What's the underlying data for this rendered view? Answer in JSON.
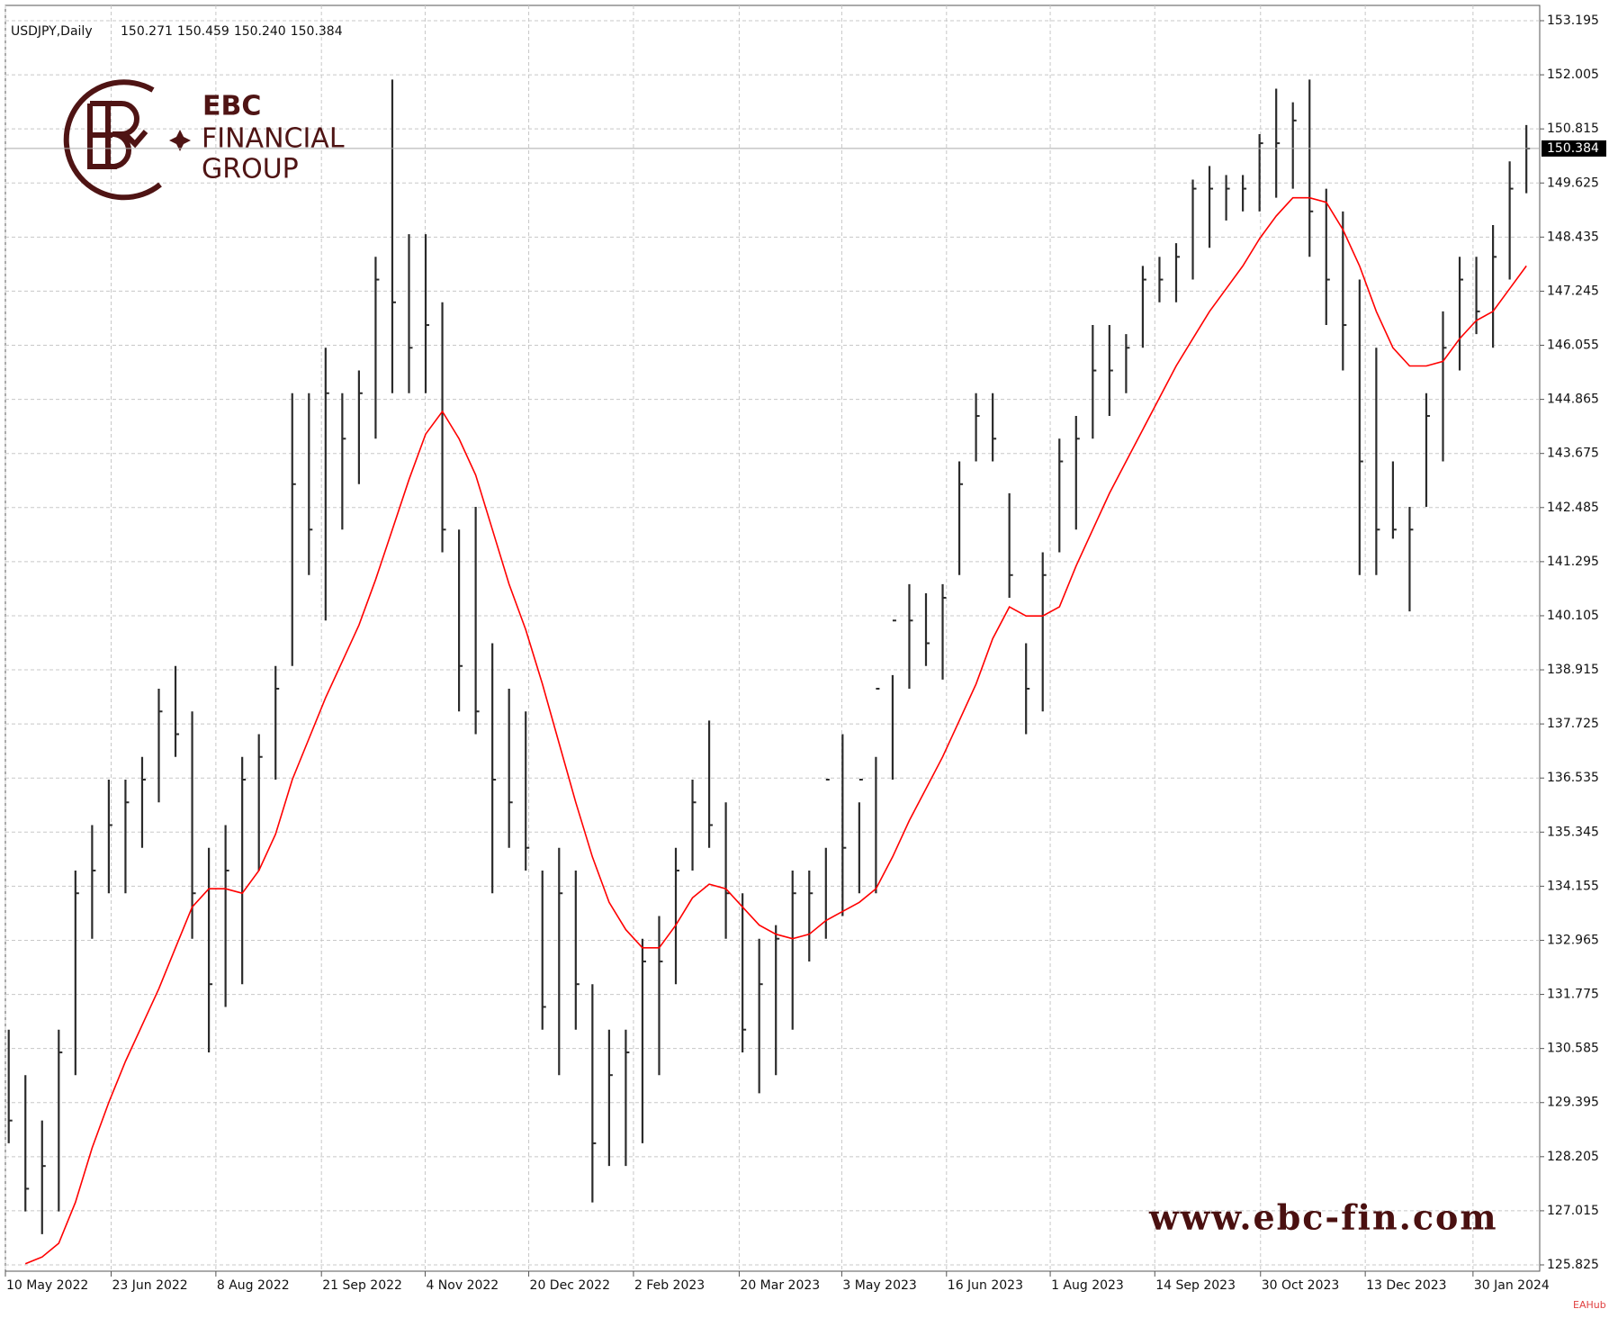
{
  "chart_data": {
    "type": "ohlc",
    "symbol": "USDJPY,Daily",
    "last_ohlc": {
      "values": [
        150.271,
        150.459,
        150.24,
        150.384
      ],
      "value_labels": [
        "150.271",
        "150.459",
        "150.240",
        "150.384"
      ]
    },
    "current_price": 150.384,
    "bar_color": "#2b2b2b",
    "high": [
      131,
      130,
      129,
      131,
      134.5,
      135.5,
      136.5,
      136.5,
      137,
      138.5,
      139,
      138,
      135,
      135.5,
      137,
      137.5,
      139,
      145,
      145,
      146,
      145,
      145.5,
      148,
      151.9,
      148.5,
      148.5,
      147,
      142,
      142.5,
      139.5,
      138.5,
      138,
      134.5,
      135,
      134.5,
      132,
      131,
      131,
      133,
      133.5,
      135,
      136.5,
      137.8,
      136,
      134,
      133,
      133.3,
      134.5,
      134.5,
      135,
      137.5,
      136,
      137,
      138.8,
      140.8,
      140.6,
      140.8,
      143.5,
      145,
      145,
      142.8,
      139.5,
      141.5,
      144,
      144.5,
      146.5,
      146.5,
      146.3,
      147.8,
      148,
      148.3,
      149.7,
      150,
      149.8,
      149.8,
      150.7,
      151.7,
      151.4,
      151.9,
      149.5,
      149,
      147.5,
      146,
      143.5,
      142.5,
      145,
      146.8,
      148,
      148,
      148.7,
      150.1,
      150.9
    ],
    "low": [
      128.5,
      127,
      126.5,
      127,
      130,
      133,
      134,
      134,
      135,
      136,
      137,
      133,
      130.5,
      131.5,
      132,
      134.5,
      136.5,
      139,
      141,
      140,
      142,
      143,
      144,
      145,
      145,
      145,
      141.5,
      138,
      137.5,
      134,
      135,
      134.5,
      131,
      130,
      131,
      127.2,
      128,
      128,
      128.5,
      130,
      132,
      134.5,
      135,
      133,
      130.5,
      129.6,
      130,
      131,
      132.5,
      133,
      133.5,
      134,
      134,
      136.5,
      138.5,
      139,
      138.7,
      141,
      143.5,
      143.5,
      140.5,
      137.5,
      138,
      141.5,
      142,
      144,
      144.5,
      145,
      146,
      147,
      147,
      147.5,
      148.2,
      148.8,
      149,
      149,
      149.3,
      149.5,
      148,
      146.5,
      145.5,
      141,
      141,
      141.8,
      140.2,
      142.5,
      143.5,
      145.5,
      146.3,
      146,
      147.5,
      149.4
    ],
    "close": [
      129,
      127.5,
      128,
      130.5,
      134,
      134.5,
      135.5,
      136,
      136.5,
      138,
      137.5,
      134,
      132,
      134.5,
      136.5,
      137,
      138.5,
      143,
      142,
      145,
      144,
      145,
      147.5,
      147,
      146,
      146.5,
      142,
      139,
      138,
      136.5,
      136,
      135,
      131.5,
      134,
      132,
      128.5,
      130,
      130.5,
      132.5,
      132.5,
      134.5,
      136,
      135.5,
      134,
      131,
      132,
      133,
      134,
      134,
      136.5,
      135,
      136.5,
      138.5,
      140,
      140,
      139.5,
      140.5,
      143,
      144.5,
      144,
      141,
      138.5,
      141,
      143.5,
      144,
      145.5,
      145.5,
      146,
      147.5,
      147.5,
      148,
      149.5,
      149.5,
      149.5,
      149.5,
      150.5,
      150.5,
      151,
      149,
      147.5,
      146.5,
      143.5,
      142,
      142,
      142,
      144.5,
      146,
      147.5,
      146.8,
      148,
      149.5,
      150.384
    ],
    "ma": {
      "color": "#ff0000",
      "values": [
        null,
        125.85,
        126.0,
        126.3,
        127.2,
        128.4,
        129.4,
        130.3,
        131.1,
        131.9,
        132.8,
        133.7,
        134.1,
        134.1,
        134.0,
        134.5,
        135.3,
        136.5,
        137.4,
        138.3,
        139.1,
        139.9,
        140.9,
        142.0,
        143.1,
        144.1,
        144.6,
        144.0,
        143.2,
        142.0,
        140.8,
        139.8,
        138.6,
        137.3,
        136.0,
        134.8,
        133.8,
        133.2,
        132.8,
        132.8,
        133.3,
        133.9,
        134.2,
        134.1,
        133.7,
        133.3,
        133.1,
        133.0,
        133.1,
        133.4,
        133.6,
        133.8,
        134.1,
        134.8,
        135.6,
        136.3,
        137.0,
        137.8,
        138.6,
        139.6,
        140.3,
        140.1,
        140.1,
        140.3,
        141.2,
        142.0,
        142.8,
        143.5,
        144.2,
        144.9,
        145.6,
        146.2,
        146.8,
        147.3,
        147.8,
        148.4,
        148.9,
        149.3,
        149.3,
        149.2,
        148.6,
        147.8,
        146.8,
        146.0,
        145.6,
        145.6,
        145.7,
        146.2,
        146.6,
        146.8,
        147.3,
        147.8
      ]
    },
    "xlim": [
      -0.2,
      91.8
    ],
    "xticks": [
      {
        "value": -0.2,
        "label": "10 May 2022"
      },
      {
        "value": 6.14,
        "label": "23 Jun 2022"
      },
      {
        "value": 12.42,
        "label": "8 Aug 2022"
      },
      {
        "value": 18.75,
        "label": "21 Sep 2022"
      },
      {
        "value": 24.97,
        "label": "4 Nov 2022"
      },
      {
        "value": 31.18,
        "label": "20 Dec 2022"
      },
      {
        "value": 37.46,
        "label": "2 Feb 2023"
      },
      {
        "value": 43.8,
        "label": "20 Mar 2023"
      },
      {
        "value": 49.95,
        "label": "3 May 2023"
      },
      {
        "value": 56.23,
        "label": "16 Jun 2023"
      },
      {
        "value": 62.45,
        "label": "1 Aug 2023"
      },
      {
        "value": 68.72,
        "label": "14 Sep 2023"
      },
      {
        "value": 75.06,
        "label": "30 Oct 2023"
      },
      {
        "value": 81.34,
        "label": "13 Dec 2023"
      },
      {
        "value": 87.8,
        "label": "30 Jan 2024"
      }
    ],
    "ylim": [
      125.825,
      153.195
    ],
    "yticks": [
      153.195,
      152.005,
      150.815,
      149.625,
      148.435,
      147.245,
      146.055,
      144.865,
      143.675,
      142.485,
      141.295,
      140.105,
      138.915,
      137.725,
      136.535,
      135.345,
      134.155,
      132.965,
      131.775,
      130.585,
      129.395,
      128.205,
      127.015,
      125.825
    ],
    "grid": true
  },
  "branding": {
    "logo_line1": "EBC",
    "logo_line2": "FINANCIAL",
    "logo_line3": "GROUP",
    "url": "www.ebc-fin.com",
    "watermark": "EAHub"
  }
}
